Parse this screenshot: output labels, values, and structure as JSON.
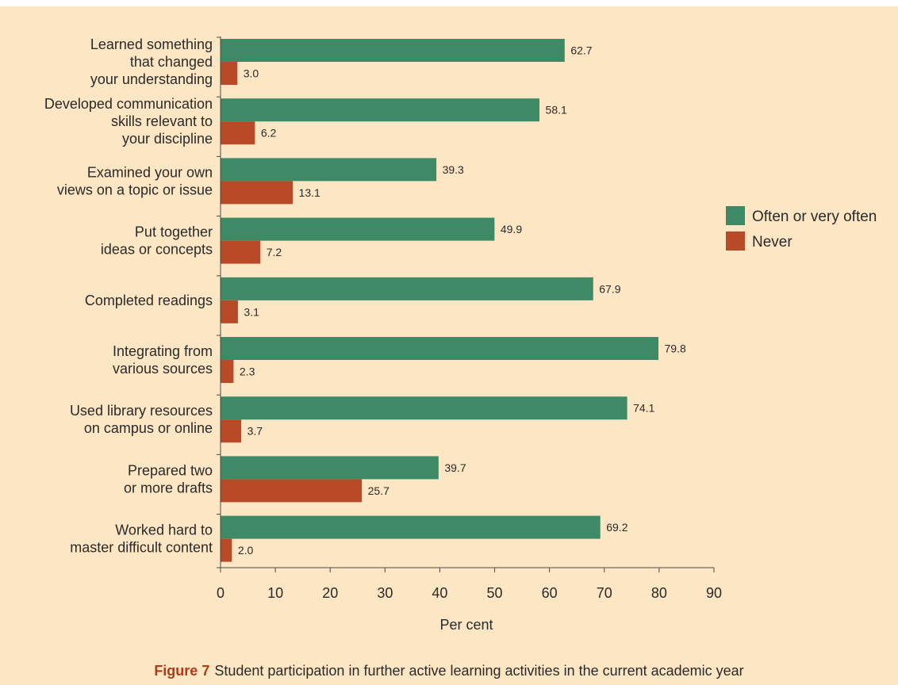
{
  "chart_data": {
    "type": "bar",
    "orientation": "horizontal",
    "categories": [
      [
        "Learned something",
        "that changed",
        "your understanding"
      ],
      [
        "Developed communication",
        "skills relevant to",
        "your discipline"
      ],
      [
        "Examined your own",
        "views on a topic or issue"
      ],
      [
        "Put together",
        "ideas or concepts"
      ],
      [
        "Completed readings"
      ],
      [
        "Integrating from",
        "various sources"
      ],
      [
        "Used library resources",
        "on campus or online"
      ],
      [
        "Prepared two",
        "or more drafts"
      ],
      [
        "Worked hard to",
        "master difficult content"
      ]
    ],
    "series": [
      {
        "name": "Often or very often",
        "color": "#3f8a66",
        "values": [
          62.7,
          58.1,
          39.3,
          49.9,
          67.9,
          79.8,
          74.1,
          39.7,
          69.2
        ],
        "labels": [
          "62.7",
          "58.1",
          "39.3",
          "49.9",
          "67.9",
          "79.8",
          "74.1",
          "39.7",
          "69.2"
        ]
      },
      {
        "name": "Never",
        "color": "#b84a27",
        "values": [
          3.0,
          6.2,
          13.1,
          7.2,
          3.1,
          2.3,
          3.7,
          25.7,
          2.0
        ],
        "labels": [
          "3.0",
          "6.2",
          "13.1",
          "7.2",
          "3.1",
          "2.3",
          "3.7",
          "25.7",
          "2.0"
        ]
      }
    ],
    "xlim": [
      0,
      90
    ],
    "xticks": [
      0,
      10,
      20,
      30,
      40,
      50,
      60,
      70,
      80,
      90
    ],
    "xlabel": "Per cent",
    "legend": "right",
    "grid": false
  },
  "caption": {
    "figure_number": "Figure 7",
    "text": "Student participation in further active learning activities in the current academic year"
  }
}
